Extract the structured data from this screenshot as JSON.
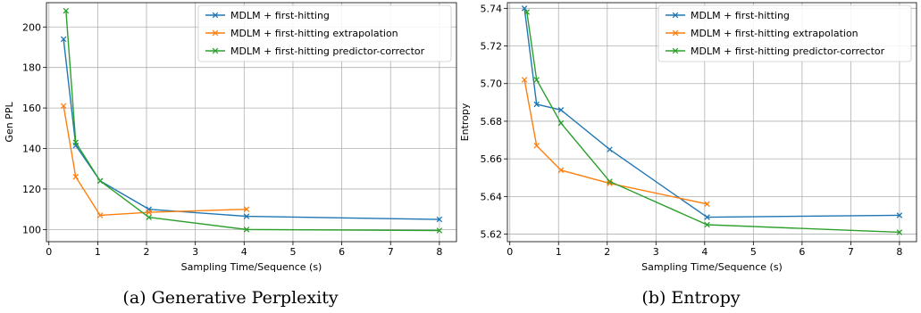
{
  "chart_data": [
    {
      "type": "line",
      "caption": "(a) Generative Perplexity",
      "xlabel": "Sampling Time/Sequence (s)",
      "ylabel": "Gen PPL",
      "xlim": [
        -0.05,
        8.35
      ],
      "ylim": [
        94,
        212
      ],
      "xticks": [
        0,
        1,
        2,
        3,
        4,
        5,
        6,
        7,
        8
      ],
      "yticks": [
        100,
        120,
        140,
        160,
        180,
        200
      ],
      "grid": true,
      "legend_position": "top-right",
      "series": [
        {
          "name": "MDLM + first-hitting",
          "color": "#1f77b4",
          "x": [
            0.3,
            0.55,
            1.05,
            2.05,
            4.05,
            8.0
          ],
          "y": [
            194,
            141.5,
            124,
            110,
            106.5,
            105
          ]
        },
        {
          "name": "MDLM + first-hitting extrapolation",
          "color": "#ff7f0e",
          "x": [
            0.3,
            0.55,
            1.05,
            2.05,
            4.05
          ],
          "y": [
            161,
            126,
            107,
            108.5,
            110
          ]
        },
        {
          "name": "MDLM + first-hitting predictor-corrector",
          "color": "#2ca02c",
          "x": [
            0.35,
            0.55,
            1.05,
            2.05,
            4.05,
            8.0
          ],
          "y": [
            208,
            143,
            124,
            106,
            100,
            99.5
          ]
        }
      ]
    },
    {
      "type": "line",
      "caption": "(b) Entropy",
      "xlabel": "Sampling Time/Sequence (s)",
      "ylabel": "Entropy",
      "xlim": [
        -0.05,
        8.35
      ],
      "ylim": [
        5.616,
        5.743
      ],
      "xticks": [
        0,
        1,
        2,
        3,
        4,
        5,
        6,
        7,
        8
      ],
      "yticks": [
        5.62,
        5.64,
        5.66,
        5.68,
        5.7,
        5.72,
        5.74
      ],
      "ytick_labels": [
        "5.62",
        "5.64",
        "5.66",
        "5.68",
        "5.70",
        "5.72",
        "5.74"
      ],
      "grid": true,
      "legend_position": "top-right",
      "series": [
        {
          "name": "MDLM + first-hitting",
          "color": "#1f77b4",
          "x": [
            0.3,
            0.55,
            1.05,
            2.05,
            4.05,
            8.0
          ],
          "y": [
            5.74,
            5.689,
            5.686,
            5.665,
            5.629,
            5.63
          ]
        },
        {
          "name": "MDLM + first-hitting extrapolation",
          "color": "#ff7f0e",
          "x": [
            0.3,
            0.55,
            1.05,
            2.05,
            4.05
          ],
          "y": [
            5.702,
            5.667,
            5.654,
            5.647,
            5.636
          ]
        },
        {
          "name": "MDLM + first-hitting predictor-corrector",
          "color": "#2ca02c",
          "x": [
            0.35,
            0.55,
            1.05,
            2.05,
            4.05,
            8.0
          ],
          "y": [
            5.738,
            5.702,
            5.679,
            5.648,
            5.625,
            5.621
          ]
        }
      ]
    }
  ]
}
